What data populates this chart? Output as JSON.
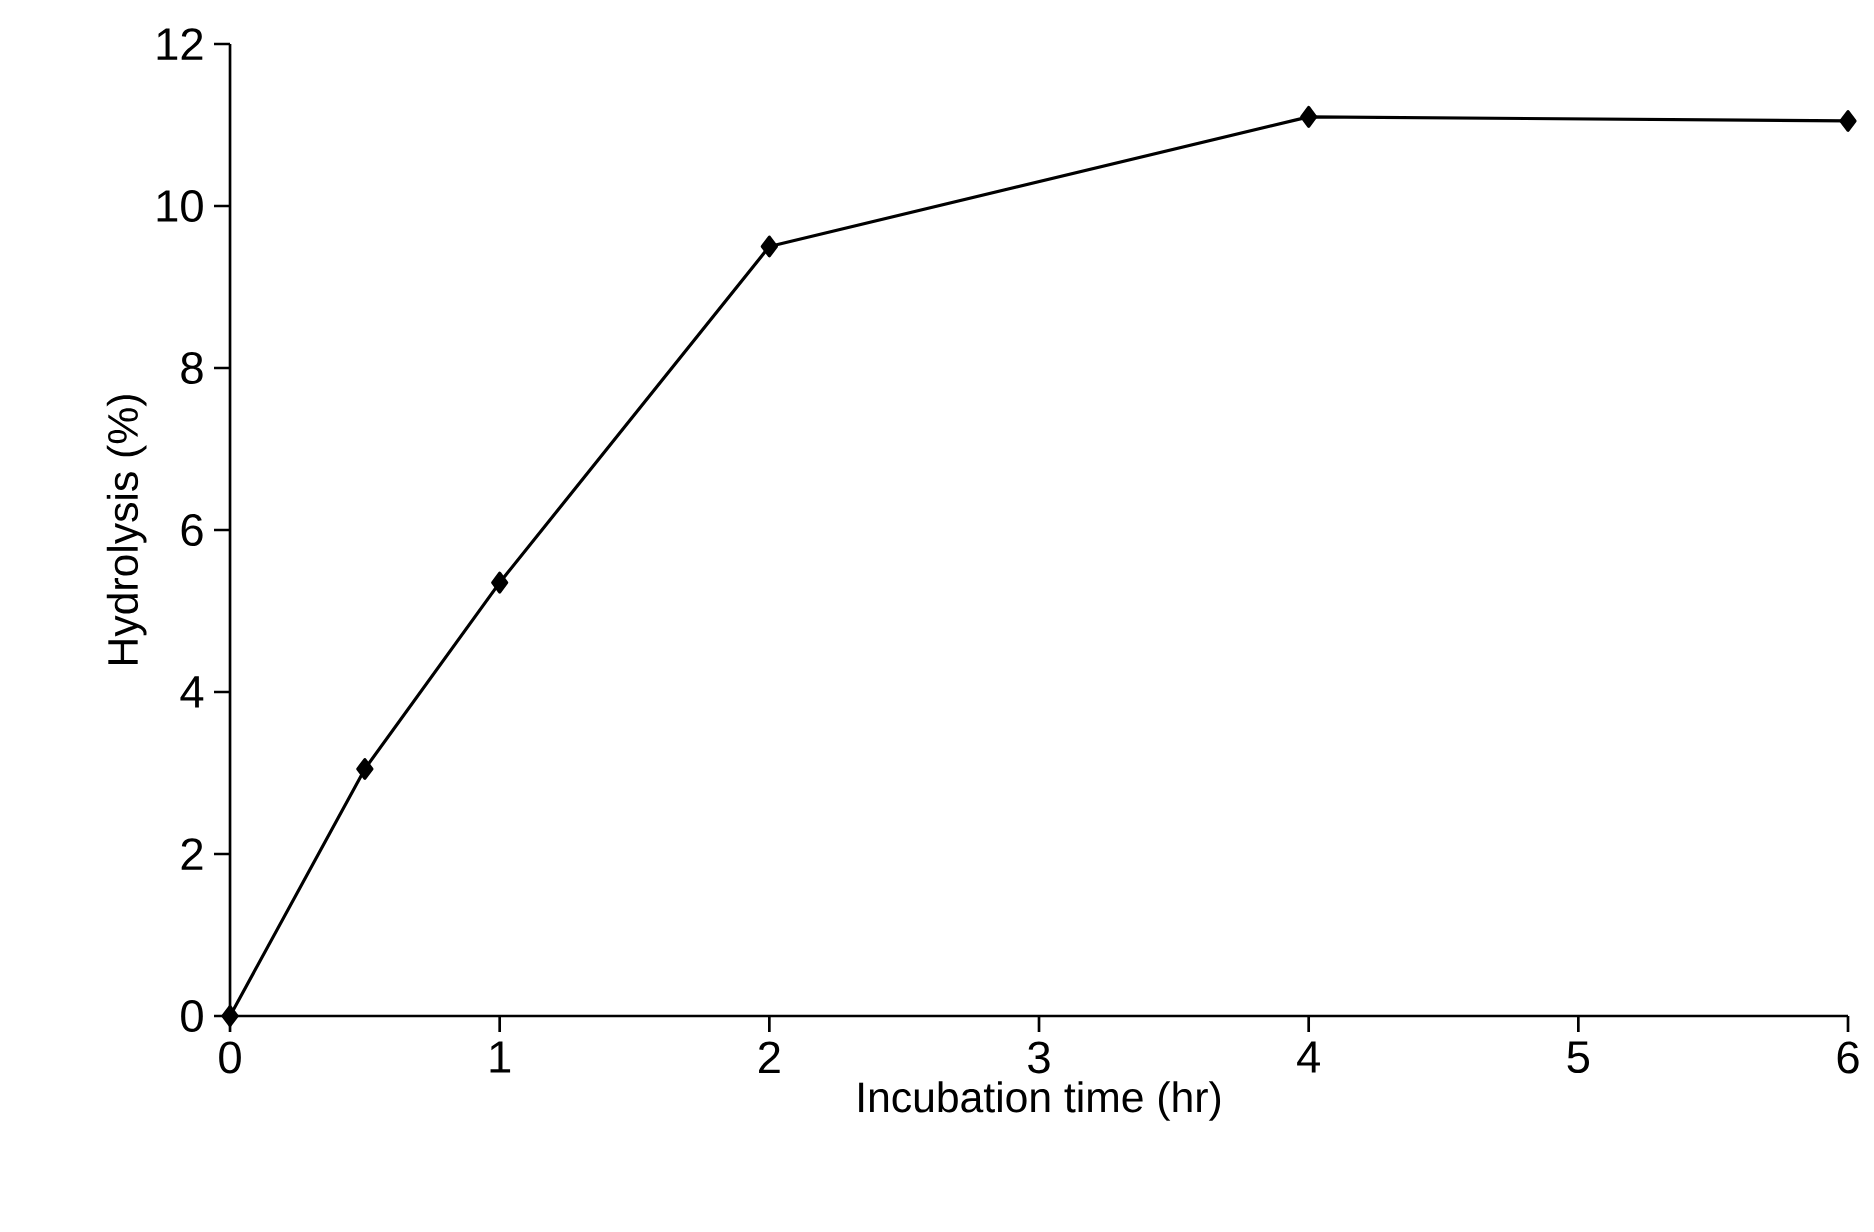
{
  "chart_data": {
    "type": "line",
    "xlabel": "Incubation time (hr)",
    "ylabel": "Hydrolysis (%)",
    "series": [
      {
        "color": "#000000",
        "x": [
          0,
          0.5,
          1,
          2,
          4,
          6
        ],
        "values": [
          0,
          3.05,
          5.35,
          9.5,
          11.1,
          11.05
        ]
      }
    ],
    "xlim": [
      0,
      6
    ],
    "ylim": [
      0,
      12
    ],
    "xticks": [
      0,
      1,
      2,
      3,
      4,
      5,
      6
    ],
    "yticks": [
      0,
      2,
      4,
      6,
      8,
      10,
      12
    ],
    "marker": "diamond",
    "line_style": "solid"
  }
}
